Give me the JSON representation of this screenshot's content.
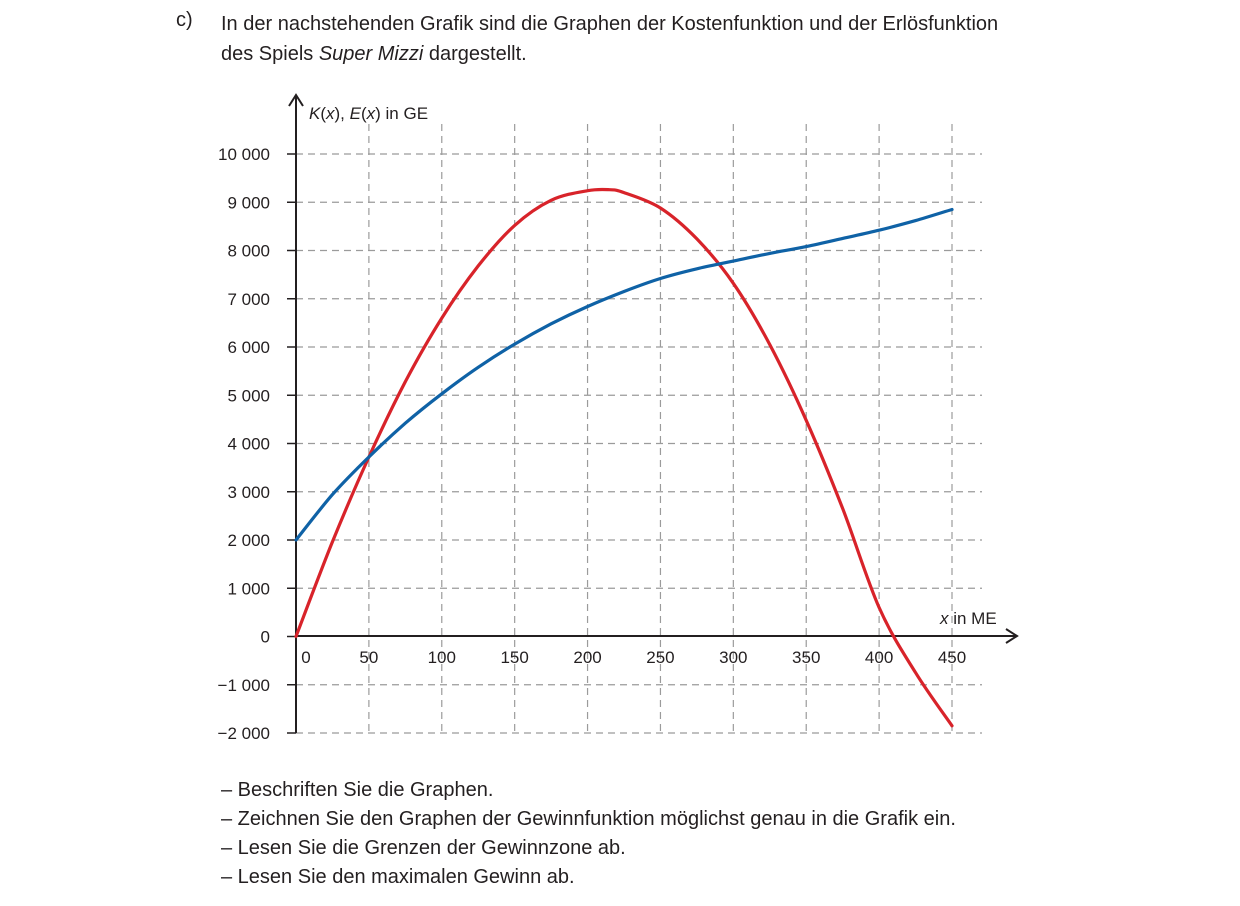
{
  "task": {
    "label": "c)",
    "intro_line1": "In der nachstehenden Grafik sind die Graphen der Kostenfunktion und der Erlösfunktion",
    "intro_line2_pre": "des Spiels ",
    "intro_line2_game": "Super Mizzi",
    "intro_line2_post": " dargestellt."
  },
  "instructions": [
    "– Beschriften Sie die Graphen.",
    "– Zeichnen Sie den Graphen der Gewinnfunktion möglichst genau in die Grafik ein.",
    "– Lesen Sie die Grenzen der Gewinnzone ab.",
    "– Lesen Sie den maximalen Gewinn ab."
  ],
  "chart_data": {
    "type": "line",
    "ylabel_parts": [
      "K",
      "(",
      "x",
      "), ",
      "E",
      "(",
      "x",
      ") in GE"
    ],
    "xlabel_parts": [
      "x",
      " in ME"
    ],
    "xlim": [
      0,
      450
    ],
    "ylim": [
      -2000,
      10000
    ],
    "x_ticks": [
      0,
      50,
      100,
      150,
      200,
      250,
      300,
      350,
      400,
      450
    ],
    "x_tick_labels": [
      "0",
      "50",
      "100",
      "150",
      "200",
      "250",
      "300",
      "350",
      "400",
      "450"
    ],
    "y_ticks": [
      -2000,
      -1000,
      0,
      1000,
      2000,
      3000,
      4000,
      5000,
      6000,
      7000,
      8000,
      9000,
      10000
    ],
    "y_tick_labels": [
      "−2 000",
      "−1 000",
      "0",
      "1 000",
      "2 000",
      "3 000",
      "4 000",
      "5 000",
      "6 000",
      "7 000",
      "8 000",
      "9 000",
      "10 000"
    ],
    "grid": true,
    "series": [
      {
        "color": "#d8232a",
        "x": [
          0,
          25,
          50,
          75,
          100,
          125,
          150,
          175,
          200,
          215,
          225,
          250,
          275,
          300,
          325,
          350,
          375,
          400,
          425,
          450
        ],
        "y": [
          0,
          1960,
          3720,
          5280,
          6600,
          7680,
          8520,
          9040,
          9240,
          9260,
          9200,
          8880,
          8240,
          7320,
          6050,
          4480,
          2650,
          600,
          -750,
          -1850
        ]
      },
      {
        "color": "#0f62a6",
        "x": [
          0,
          25,
          50,
          75,
          100,
          125,
          150,
          175,
          200,
          225,
          250,
          275,
          300,
          325,
          350,
          375,
          400,
          425,
          450
        ],
        "y": [
          2000,
          2940,
          3720,
          4420,
          5030,
          5580,
          6060,
          6480,
          6840,
          7150,
          7420,
          7620,
          7780,
          7940,
          8080,
          8250,
          8420,
          8620,
          8850
        ]
      }
    ]
  }
}
